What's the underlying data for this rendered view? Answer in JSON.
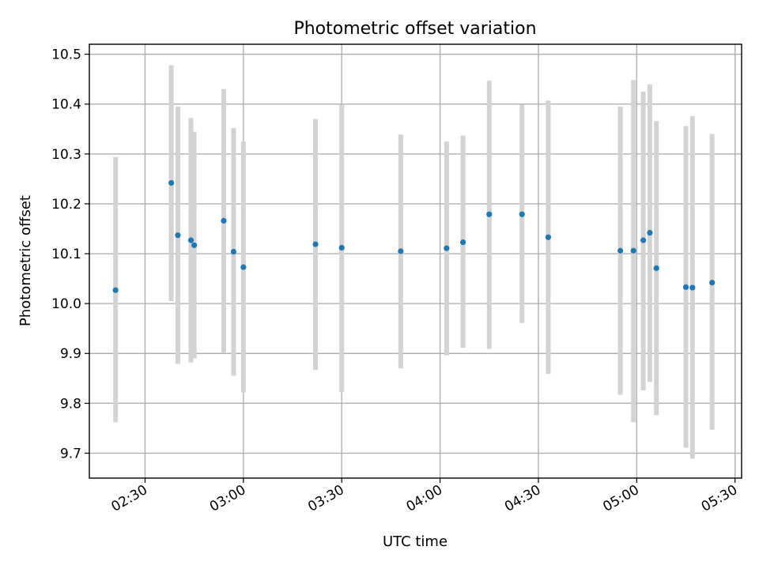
{
  "chart_data": {
    "type": "scatter",
    "title": "Photometric offset variation",
    "xlabel": "UTC time",
    "ylabel": "Photometric offset",
    "x_tick_labels": [
      "02:30",
      "03:00",
      "03:30",
      "04:00",
      "04:30",
      "05:00",
      "05:30"
    ],
    "x_tick_minutes": [
      150,
      180,
      210,
      240,
      270,
      300,
      330
    ],
    "y_ticks": [
      9.7,
      9.8,
      9.9,
      10.0,
      10.1,
      10.2,
      10.3,
      10.4,
      10.5
    ],
    "y_tick_labels": [
      "9.7",
      "9.8",
      "9.9",
      "10.0",
      "10.1",
      "10.2",
      "10.3",
      "10.4",
      "10.5"
    ],
    "xlim": [
      "02:13",
      "05:32"
    ],
    "ylim": [
      9.65,
      10.52
    ],
    "grid": true,
    "point_color": "#1f77b4",
    "errorbar_color": "#d3d3d3",
    "series": [
      {
        "points": [
          {
            "x": "02:21",
            "y": 10.027,
            "ylow": 9.762,
            "yhigh": 10.294
          },
          {
            "x": "02:38",
            "y": 10.242,
            "ylow": 10.005,
            "yhigh": 10.478
          },
          {
            "x": "02:40",
            "y": 10.137,
            "ylow": 9.879,
            "yhigh": 10.395
          },
          {
            "x": "02:44",
            "y": 10.127,
            "ylow": 9.882,
            "yhigh": 10.372
          },
          {
            "x": "02:45",
            "y": 10.117,
            "ylow": 9.89,
            "yhigh": 10.344
          },
          {
            "x": "02:54",
            "y": 10.166,
            "ylow": 9.902,
            "yhigh": 10.43
          },
          {
            "x": "02:57",
            "y": 10.104,
            "ylow": 9.855,
            "yhigh": 10.352
          },
          {
            "x": "03:00",
            "y": 10.073,
            "ylow": 9.822,
            "yhigh": 10.325
          },
          {
            "x": "03:22",
            "y": 10.119,
            "ylow": 9.867,
            "yhigh": 10.37
          },
          {
            "x": "03:30",
            "y": 10.112,
            "ylow": 9.823,
            "yhigh": 10.399
          },
          {
            "x": "03:48",
            "y": 10.105,
            "ylow": 9.87,
            "yhigh": 10.339
          },
          {
            "x": "04:02",
            "y": 10.111,
            "ylow": 9.896,
            "yhigh": 10.325
          },
          {
            "x": "04:07",
            "y": 10.123,
            "ylow": 9.911,
            "yhigh": 10.337
          },
          {
            "x": "04:15",
            "y": 10.179,
            "ylow": 9.909,
            "yhigh": 10.447
          },
          {
            "x": "04:25",
            "y": 10.179,
            "ylow": 9.961,
            "yhigh": 10.399
          },
          {
            "x": "04:33",
            "y": 10.133,
            "ylow": 9.859,
            "yhigh": 10.407
          },
          {
            "x": "04:55",
            "y": 10.106,
            "ylow": 9.817,
            "yhigh": 10.395
          },
          {
            "x": "04:59",
            "y": 10.106,
            "ylow": 9.762,
            "yhigh": 10.448
          },
          {
            "x": "05:02",
            "y": 10.127,
            "ylow": 9.826,
            "yhigh": 10.425
          },
          {
            "x": "05:04",
            "y": 10.142,
            "ylow": 9.843,
            "yhigh": 10.44
          },
          {
            "x": "05:06",
            "y": 10.071,
            "ylow": 9.776,
            "yhigh": 10.366
          },
          {
            "x": "05:15",
            "y": 10.033,
            "ylow": 9.711,
            "yhigh": 10.356
          },
          {
            "x": "05:17",
            "y": 10.032,
            "ylow": 9.689,
            "yhigh": 10.376
          },
          {
            "x": "05:23",
            "y": 10.042,
            "ylow": 9.747,
            "yhigh": 10.34
          }
        ]
      }
    ]
  }
}
